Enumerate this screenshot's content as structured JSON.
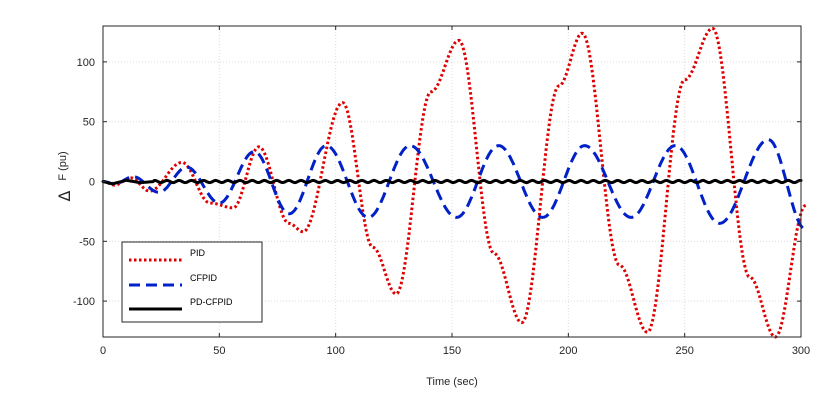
{
  "chart_data": {
    "type": "line",
    "title": "",
    "xlabel": "Time (sec)",
    "ylabel_symbol": "Δ",
    "ylabel": "F (pu)",
    "xlim": [
      0,
      300
    ],
    "ylim": [
      -130,
      130
    ],
    "x_ticks": [
      0,
      50,
      100,
      150,
      200,
      250,
      300
    ],
    "y_ticks": [
      -100,
      -50,
      0,
      50,
      100
    ],
    "grid": true,
    "legend_position": "lower-left",
    "series": [
      {
        "name": "PID",
        "color": "#e00000",
        "style": "dotted",
        "points": [
          [
            0,
            0
          ],
          [
            5,
            -3
          ],
          [
            12,
            3
          ],
          [
            20,
            -8
          ],
          [
            34,
            16
          ],
          [
            46,
            -18
          ],
          [
            56,
            -22
          ],
          [
            67,
            29
          ],
          [
            80,
            -35
          ],
          [
            86,
            -42
          ],
          [
            103,
            66
          ],
          [
            116,
            -55
          ],
          [
            126,
            -94
          ],
          [
            141,
            75
          ],
          [
            153,
            118
          ],
          [
            168,
            -60
          ],
          [
            180,
            -118
          ],
          [
            196,
            80
          ],
          [
            206,
            124
          ],
          [
            222,
            -70
          ],
          [
            234,
            -126
          ],
          [
            250,
            85
          ],
          [
            262,
            128
          ],
          [
            278,
            -80
          ],
          [
            289,
            -130
          ],
          [
            302,
            -20
          ]
        ]
      },
      {
        "name": "CFPID",
        "color": "#0020c8",
        "style": "dashed",
        "points": [
          [
            0,
            0
          ],
          [
            5,
            -2
          ],
          [
            13,
            4
          ],
          [
            24,
            -9
          ],
          [
            36,
            12
          ],
          [
            50,
            -18
          ],
          [
            65,
            25
          ],
          [
            80,
            -27
          ],
          [
            96,
            30
          ],
          [
            114,
            -30
          ],
          [
            132,
            30
          ],
          [
            152,
            -30
          ],
          [
            170,
            30
          ],
          [
            189,
            -30
          ],
          [
            207,
            30
          ],
          [
            227,
            -30
          ],
          [
            246,
            30
          ],
          [
            265,
            -35
          ],
          [
            286,
            35
          ],
          [
            302,
            -40
          ]
        ]
      },
      {
        "name": "PD-CFPID",
        "color": "#000000",
        "style": "solid",
        "points": [
          [
            0,
            0
          ],
          [
            4,
            -2
          ],
          [
            10,
            1
          ],
          [
            16,
            -1
          ],
          [
            22,
            0
          ],
          [
            300,
            0
          ]
        ]
      }
    ]
  }
}
